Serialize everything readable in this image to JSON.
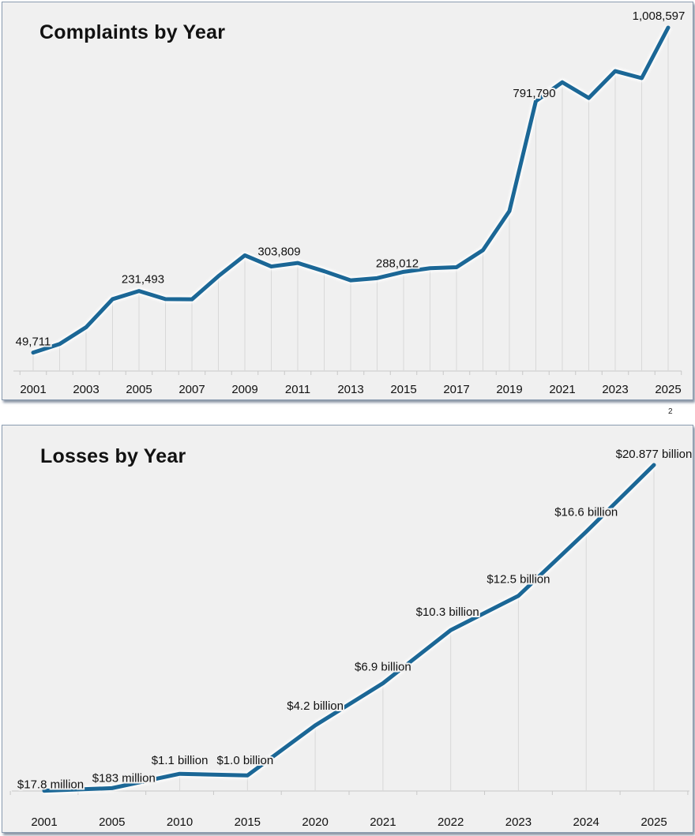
{
  "page_number": "2",
  "colors": {
    "line": "#1b6796",
    "background": "#f0f0f0",
    "grid": "#d8d8d8"
  },
  "chart_data": [
    {
      "type": "line",
      "title": "Complaints by Year",
      "categories": [
        "2001",
        "2002",
        "2003",
        "2004",
        "2005",
        "2006",
        "2007",
        "2008",
        "2009",
        "2010",
        "2011",
        "2012",
        "2013",
        "2014",
        "2015",
        "2016",
        "2017",
        "2018",
        "2019",
        "2020",
        "2021",
        "2022",
        "2023",
        "2024",
        "2025"
      ],
      "tick_labels": [
        "2001",
        "2003",
        "2005",
        "2007",
        "2009",
        "2011",
        "2013",
        "2015",
        "2017",
        "2019",
        "2021",
        "2023",
        "2025"
      ],
      "values": [
        49711,
        75064,
        124509,
        207449,
        231493,
        207492,
        206884,
        275284,
        336655,
        303809,
        314246,
        289874,
        262813,
        269422,
        288012,
        298728,
        301580,
        351937,
        467361,
        791790,
        847376,
        800944,
        880418,
        859532,
        1008597
      ],
      "data_labels": [
        {
          "category": "2001",
          "text": "49,711"
        },
        {
          "category": "2005",
          "text": "231,493"
        },
        {
          "category": "2010",
          "text": "303,809"
        },
        {
          "category": "2015",
          "text": "288,012"
        },
        {
          "category": "2020",
          "text": "791,790"
        },
        {
          "category": "2025",
          "text": "1,008,597"
        }
      ],
      "ylim": [
        0,
        1008597
      ],
      "grid": "vertical drop lines",
      "legend": "none"
    },
    {
      "type": "line",
      "title": "Losses by Year",
      "categories": [
        "2001",
        "2005",
        "2010",
        "2015",
        "2020",
        "2021",
        "2022",
        "2023",
        "2024",
        "2025"
      ],
      "tick_labels": [
        "2001",
        "2005",
        "2010",
        "2015",
        "2020",
        "2021",
        "2022",
        "2023",
        "2024",
        "2025"
      ],
      "values": [
        0.0178,
        0.183,
        1.1,
        1.0,
        4.2,
        6.9,
        10.3,
        12.5,
        16.6,
        20.877
      ],
      "units": "billion USD",
      "data_labels": [
        "$17.8 million",
        "$183 million",
        "$1.1 billion",
        "$1.0 billion",
        "$4.2 billion",
        "$6.9 billion",
        "$10.3 billion",
        "$12.5 billion",
        "$16.6 billion",
        "$20.877 billion"
      ],
      "ylim": [
        0,
        20.877
      ],
      "grid": "vertical drop lines",
      "legend": "none"
    }
  ]
}
